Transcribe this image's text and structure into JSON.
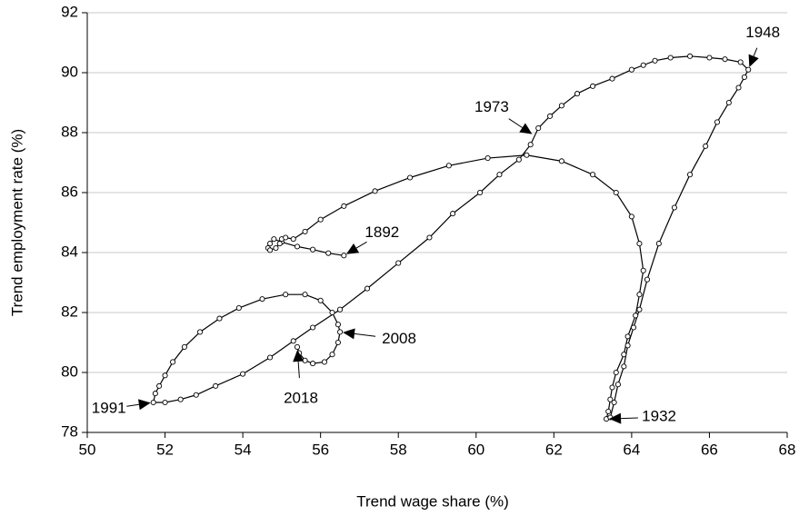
{
  "chart_data": {
    "type": "line",
    "x_label": "Trend wage share (%)",
    "y_label": "Trend employment rate (%)",
    "x": [
      56.6,
      56.2,
      55.8,
      55.4,
      55.0,
      54.8,
      54.7,
      54.65,
      54.7,
      54.85,
      54.95,
      55.0,
      55.1,
      55.3,
      55.6,
      56.0,
      56.6,
      57.4,
      58.3,
      59.3,
      60.3,
      61.3,
      62.2,
      63.0,
      63.6,
      64.0,
      64.2,
      64.3,
      64.2,
      64.1,
      63.9,
      63.8,
      63.6,
      63.5,
      63.45,
      63.4,
      63.35,
      63.45,
      63.55,
      63.65,
      63.8,
      63.9,
      64.05,
      64.2,
      64.4,
      64.7,
      65.1,
      65.5,
      65.9,
      66.2,
      66.5,
      66.75,
      66.9,
      67.0,
      66.8,
      66.4,
      66.0,
      65.5,
      65.0,
      64.6,
      64.3,
      64.0,
      63.5,
      63.0,
      62.6,
      62.2,
      61.9,
      61.6,
      61.4,
      61.1,
      60.6,
      60.1,
      59.4,
      58.8,
      58.0,
      57.2,
      56.5,
      55.8,
      55.3,
      54.7,
      54.0,
      53.3,
      52.8,
      52.4,
      52.0,
      51.7,
      51.75,
      51.85,
      52.0,
      52.2,
      52.5,
      52.9,
      53.4,
      53.9,
      54.5,
      55.1,
      55.6,
      56.0,
      56.3,
      56.45,
      56.5,
      56.45,
      56.3,
      56.1,
      55.8,
      55.6,
      55.45,
      55.4
    ],
    "values": [
      83.9,
      83.98,
      84.1,
      84.2,
      84.35,
      84.45,
      84.3,
      84.15,
      84.08,
      84.15,
      84.3,
      84.45,
      84.5,
      84.45,
      84.7,
      85.1,
      85.55,
      86.05,
      86.5,
      86.9,
      87.15,
      87.25,
      87.05,
      86.6,
      86.0,
      85.2,
      84.3,
      83.4,
      82.6,
      81.9,
      81.2,
      80.6,
      80.0,
      79.5,
      79.1,
      78.7,
      78.45,
      78.5,
      79.0,
      79.6,
      80.2,
      80.9,
      81.5,
      82.1,
      83.1,
      84.3,
      85.5,
      86.6,
      87.55,
      88.35,
      89.0,
      89.5,
      89.85,
      90.1,
      90.35,
      90.45,
      90.5,
      90.55,
      90.5,
      90.4,
      90.25,
      90.1,
      89.8,
      89.55,
      89.3,
      88.9,
      88.55,
      88.15,
      87.6,
      87.1,
      86.6,
      86.0,
      85.3,
      84.5,
      83.65,
      82.8,
      82.1,
      81.5,
      81.05,
      80.5,
      79.95,
      79.55,
      79.25,
      79.1,
      79.0,
      79.0,
      79.3,
      79.55,
      79.9,
      80.35,
      80.85,
      81.35,
      81.8,
      82.15,
      82.45,
      82.6,
      82.6,
      82.4,
      82.0,
      81.6,
      81.35,
      81.0,
      80.6,
      80.35,
      80.3,
      80.4,
      80.65,
      80.85
    ],
    "color": "#000000",
    "xlim": [
      50,
      68
    ],
    "xticks": [
      50,
      52,
      54,
      56,
      58,
      60,
      62,
      64,
      66,
      68
    ],
    "ylim": [
      78,
      92
    ],
    "yticks": [
      78,
      80,
      82,
      84,
      86,
      88,
      90,
      92
    ],
    "grid": true,
    "annotations": [
      {
        "text": "1892",
        "x": 56.6,
        "y": 83.9
      },
      {
        "text": "1932",
        "x": 63.35,
        "y": 78.45
      },
      {
        "text": "1948",
        "x": 67.0,
        "y": 90.1
      },
      {
        "text": "1973",
        "x": 61.5,
        "y": 87.9
      },
      {
        "text": "1991",
        "x": 51.7,
        "y": 79.0
      },
      {
        "text": "2008",
        "x": 56.5,
        "y": 81.35
      },
      {
        "text": "2018",
        "x": 55.4,
        "y": 80.85
      }
    ]
  }
}
